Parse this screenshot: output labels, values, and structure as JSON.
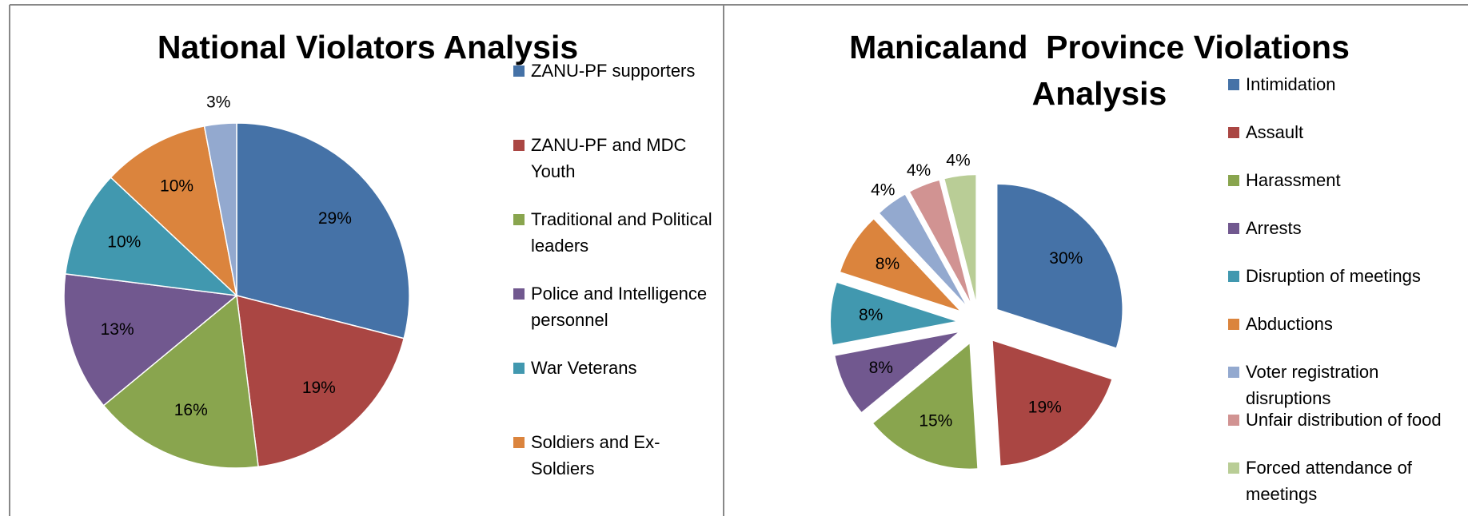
{
  "chart_data": [
    {
      "type": "pie",
      "title": "National Violators Analysis",
      "categories": [
        "ZANU-PF supporters",
        "ZANU-PF and MDC Youth",
        "Traditional and Political leaders",
        "Police and Intelligence personnel",
        "War Veterans",
        "Soldiers and Ex-Soldiers",
        null
      ],
      "values": [
        29,
        19,
        16,
        13,
        10,
        10,
        3
      ],
      "value_labels": [
        "29%",
        "19%",
        "16%",
        "13%",
        "10%",
        "10%",
        "3%"
      ],
      "colors": [
        "#4572a7",
        "#aa4643",
        "#89a54e",
        "#71588f",
        "#4198af",
        "#db843d",
        "#93a9cf"
      ],
      "legend": "right"
    },
    {
      "type": "pie",
      "title": "Manicaland  Province Violations Analysis",
      "categories": [
        "Intimidation",
        "Assault",
        "Harassment",
        "Arrests",
        "Disruption of meetings",
        "Abductions",
        "Voter registration disruptions",
        "Unfair distribution of food",
        "Forced attendance of meetings"
      ],
      "values": [
        30,
        19,
        15,
        8,
        8,
        8,
        4,
        4,
        4
      ],
      "value_labels": [
        "30%",
        "19%",
        "15%",
        "8%",
        "8%",
        "8%",
        "4%",
        "4%",
        "4%"
      ],
      "colors": [
        "#4572a7",
        "#aa4643",
        "#89a54e",
        "#71588f",
        "#4198af",
        "#db843d",
        "#93a9cf",
        "#d19392",
        "#b9cd96"
      ],
      "exploded": true,
      "legend": "right"
    }
  ]
}
